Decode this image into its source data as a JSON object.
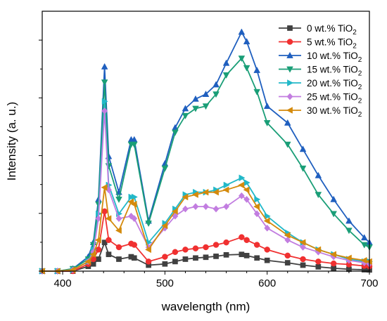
{
  "chart_data": {
    "type": "line",
    "xlabel": "wavelength (nm)",
    "ylabel": "Intensity (a. u.)",
    "xlim": [
      380,
      700
    ],
    "ylim": [
      0,
      1.0
    ],
    "x_ticks": [
      400,
      500,
      600,
      700
    ],
    "y_tick_labels_shown": false,
    "grid": false,
    "legend_position": "top-right",
    "x": [
      380,
      395,
      410,
      425,
      430,
      435,
      441,
      445,
      455,
      467,
      470,
      484,
      500,
      510,
      520,
      530,
      540,
      550,
      560,
      575,
      580,
      590,
      600,
      620,
      635,
      650,
      665,
      680,
      695,
      700
    ],
    "series": [
      {
        "name": "0 wt.% TiO2",
        "name_parts": {
          "main": "0 wt.% TiO",
          "sub": "2"
        },
        "color": "#404040",
        "marker": "square",
        "values": [
          0.0,
          0.0,
          0.0,
          0.02,
          0.03,
          0.05,
          0.12,
          0.07,
          0.05,
          0.06,
          0.055,
          0.025,
          0.03,
          0.04,
          0.05,
          0.055,
          0.058,
          0.062,
          0.068,
          0.07,
          0.065,
          0.055,
          0.045,
          0.035,
          0.025,
          0.018,
          0.012,
          0.008,
          0.006,
          0.005
        ]
      },
      {
        "name": "5 wt.% TiO2",
        "name_parts": {
          "main": "5 wt.% TiO",
          "sub": "2"
        },
        "color": "#f03030",
        "marker": "circle",
        "values": [
          0.0,
          0.0,
          0.0,
          0.03,
          0.05,
          0.09,
          0.25,
          0.13,
          0.1,
          0.115,
          0.11,
          0.04,
          0.06,
          0.08,
          0.09,
          0.095,
          0.1,
          0.11,
          0.12,
          0.142,
          0.13,
          0.11,
          0.09,
          0.065,
          0.05,
          0.04,
          0.032,
          0.028,
          0.022,
          0.02
        ]
      },
      {
        "name": "10 wt.% TiO2",
        "name_parts": {
          "main": "10 wt.% TiO",
          "sub": "2"
        },
        "color": "#1f5fbf",
        "marker": "triangle-up",
        "values": [
          0.0,
          0.0,
          0.01,
          0.06,
          0.12,
          0.3,
          0.855,
          0.48,
          0.33,
          0.55,
          0.55,
          0.21,
          0.45,
          0.6,
          0.68,
          0.72,
          0.74,
          0.78,
          0.87,
          1.0,
          0.96,
          0.84,
          0.69,
          0.62,
          0.51,
          0.4,
          0.3,
          0.21,
          0.14,
          0.12
        ]
      },
      {
        "name": "15 wt.% TiO2",
        "name_parts": {
          "main": "15 wt.% TiO",
          "sub": "2"
        },
        "color": "#1a9e77",
        "marker": "triangle-down",
        "values": [
          0.0,
          0.0,
          0.01,
          0.05,
          0.11,
          0.28,
          0.79,
          0.44,
          0.3,
          0.53,
          0.53,
          0.2,
          0.43,
          0.58,
          0.65,
          0.68,
          0.69,
          0.74,
          0.82,
          0.89,
          0.85,
          0.75,
          0.62,
          0.53,
          0.43,
          0.32,
          0.24,
          0.17,
          0.11,
          0.1
        ]
      },
      {
        "name": "20 wt.% TiO2",
        "name_parts": {
          "main": "20 wt.% TiO",
          "sub": "2"
        },
        "color": "#22b8c8",
        "marker": "triangle-right",
        "values": [
          0.0,
          0.0,
          0.005,
          0.04,
          0.09,
          0.24,
          0.71,
          0.36,
          0.24,
          0.31,
          0.31,
          0.12,
          0.2,
          0.26,
          0.32,
          0.33,
          0.33,
          0.34,
          0.36,
          0.39,
          0.37,
          0.3,
          0.23,
          0.16,
          0.12,
          0.09,
          0.07,
          0.05,
          0.04,
          0.04
        ]
      },
      {
        "name": "25 wt.% TiO2",
        "name_parts": {
          "main": "25 wt.% TiO",
          "sub": "2"
        },
        "color": "#c27de0",
        "marker": "diamond",
        "values": [
          0.0,
          0.0,
          0.005,
          0.04,
          0.08,
          0.22,
          0.67,
          0.34,
          0.22,
          0.23,
          0.22,
          0.1,
          0.18,
          0.23,
          0.26,
          0.27,
          0.27,
          0.26,
          0.27,
          0.315,
          0.3,
          0.24,
          0.18,
          0.13,
          0.1,
          0.08,
          0.06,
          0.045,
          0.035,
          0.03
        ]
      },
      {
        "name": "30 wt.% TiO2",
        "name_parts": {
          "main": "30 wt.% TiO",
          "sub": "2"
        },
        "color": "#d48a0c",
        "marker": "triangle-left",
        "values": [
          0.0,
          0.0,
          0.005,
          0.04,
          0.07,
          0.13,
          0.35,
          0.22,
          0.17,
          0.29,
          0.28,
          0.09,
          0.19,
          0.25,
          0.31,
          0.32,
          0.33,
          0.33,
          0.34,
          0.36,
          0.34,
          0.27,
          0.21,
          0.15,
          0.12,
          0.09,
          0.07,
          0.055,
          0.045,
          0.04
        ]
      }
    ]
  }
}
